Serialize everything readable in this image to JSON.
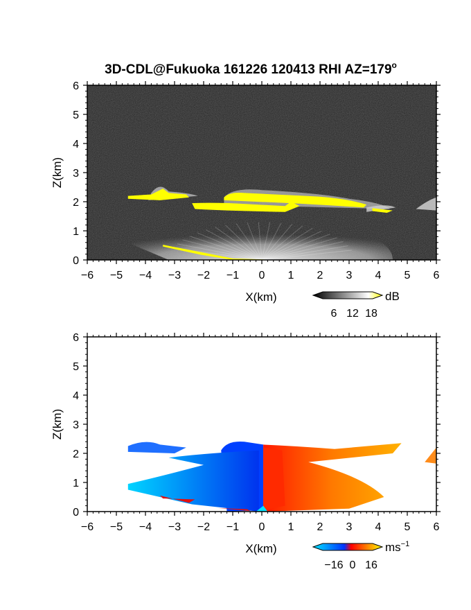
{
  "chart_data": [
    {
      "type": "heatmap",
      "title": "3D-CDL@Fukuoka 161226 120413 RHI AZ=179",
      "title_superscript": "o",
      "xlabel": "X(km)",
      "ylabel": "Z(km)",
      "xlim": [
        -6,
        6
      ],
      "ylim": [
        0,
        6
      ],
      "x_ticks": [
        "-6",
        "-5",
        "-4",
        "-3",
        "-2",
        "-1",
        "0",
        "1",
        "2",
        "3",
        "4",
        "5",
        "6"
      ],
      "y_ticks": [
        "0",
        "1",
        "2",
        "3",
        "4",
        "5",
        "6"
      ],
      "quantity": "SNR",
      "colorbar": {
        "unit": "dB",
        "ticks": [
          "6",
          "12",
          "18"
        ],
        "colors": [
          "#000000",
          "#ffffff",
          "#ffff00"
        ]
      },
      "background_color": "#262626",
      "layers": [
        {
          "name": "",
          "x": [
            -3.5,
            4.5
          ],
          "z": [
            1.6,
            2.5
          ],
          "level": "high",
          "color": "#ffff00"
        },
        {
          "name": "",
          "x": [
            -3.4,
            0.5
          ],
          "z": [
            0.0,
            0.5
          ],
          "level": "high",
          "color": "#ffff00"
        },
        {
          "name": "",
          "x": [
            -4.5,
            4.5
          ],
          "z": [
            0.0,
            1.3
          ],
          "level": "medium",
          "color": "#c8c8c8"
        }
      ]
    },
    {
      "type": "heatmap",
      "title": "",
      "xlabel": "X(km)",
      "ylabel": "Z(km)",
      "xlim": [
        -6,
        6
      ],
      "ylim": [
        0,
        6
      ],
      "x_ticks": [
        "-6",
        "-5",
        "-4",
        "-3",
        "-2",
        "-1",
        "0",
        "1",
        "2",
        "3",
        "4",
        "5",
        "6"
      ],
      "y_ticks": [
        "0",
        "1",
        "2",
        "3",
        "4",
        "5",
        "6"
      ],
      "quantity": "Doppler velocity",
      "colorbar": {
        "unit": "ms",
        "unit_superscript": "−1",
        "ticks": [
          "−16",
          "0",
          "16"
        ],
        "colors": [
          "#00e5ff",
          "#0033ff",
          "#ff0000",
          "#ffff00"
        ]
      },
      "regions": [
        {
          "x": [
            -4.6,
            -0.1
          ],
          "z": [
            0.0,
            2.4
          ],
          "sign": "negative",
          "color": "#1f6fff"
        },
        {
          "x": [
            0.1,
            6.0
          ],
          "z": [
            0.0,
            2.4
          ],
          "sign": "positive",
          "color": "#ff7a00"
        }
      ]
    }
  ]
}
